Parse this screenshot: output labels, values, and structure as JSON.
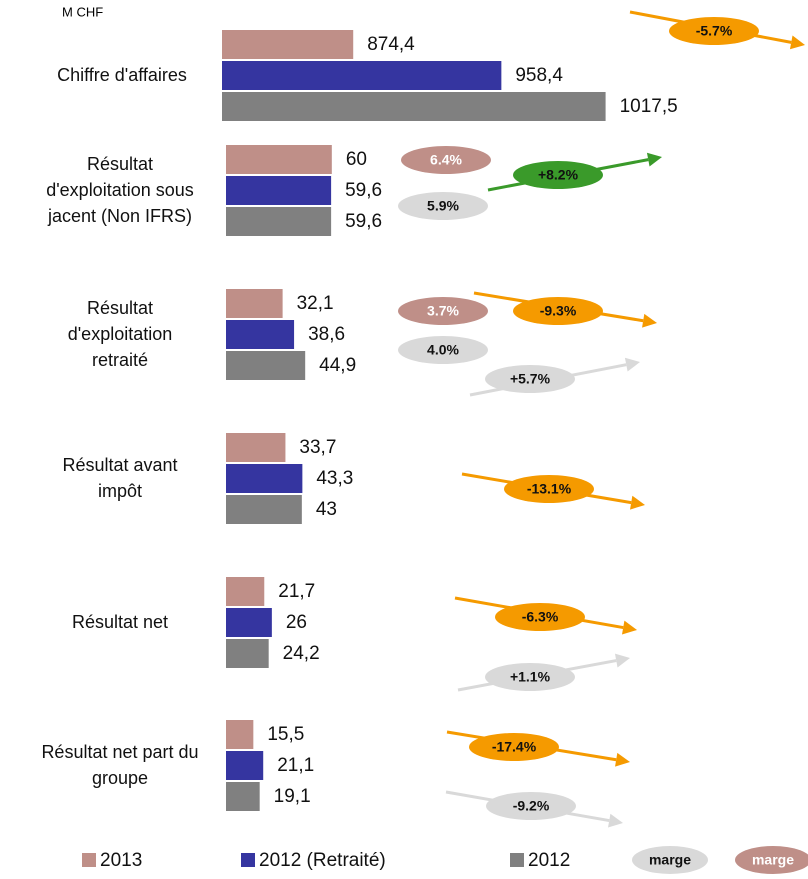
{
  "unit": "M CHF",
  "chart_data": [
    {
      "type": "hbar",
      "categories": [
        "Chiffre d'affaires"
      ],
      "xlim": [
        800,
        1020
      ],
      "series": [
        {
          "name": "2013",
          "color": "#bf8f88",
          "values": [
            874.4
          ],
          "value_labels": [
            "874,4"
          ]
        },
        {
          "name": "2012 (Retraité)",
          "color": "#3535a0",
          "values": [
            958.4
          ],
          "value_labels": [
            "958,4"
          ]
        },
        {
          "name": "2012",
          "color": "#808080",
          "values": [
            1017.5
          ],
          "value_labels": [
            "1017,5"
          ]
        }
      ]
    },
    {
      "type": "hbar",
      "categories": [
        "Résultat\nd'exploitation sous\njacent (Non IFRS)",
        "Résultat\nd'exploitation\nretraité",
        "Résultat avant\nimpôt",
        "Résultat net",
        "Résultat net part du\ngroupe"
      ],
      "xlim": [
        0,
        220
      ],
      "series": [
        {
          "name": "2013",
          "color": "#bf8f88",
          "values": [
            60,
            32.1,
            33.7,
            21.7,
            15.5
          ],
          "value_labels": [
            "60",
            "32,1",
            "33,7",
            "21,7",
            "15,5"
          ]
        },
        {
          "name": "2012 (Retraité)",
          "color": "#3535a0",
          "values": [
            59.6,
            38.6,
            43.3,
            26,
            21.1
          ],
          "value_labels": [
            "59,6",
            "38,6",
            "43,3",
            "26",
            "21,1"
          ]
        },
        {
          "name": "2012",
          "color": "#808080",
          "values": [
            59.6,
            44.9,
            43,
            24.2,
            19.1
          ],
          "value_labels": [
            "59,6",
            "44,9",
            "43",
            "24,2",
            "19,1"
          ]
        }
      ]
    }
  ],
  "annotations": [
    {
      "text": "-5.7%",
      "color": "#f59a00"
    },
    {
      "text": "6.4%",
      "color": "#bf8f88"
    },
    {
      "text": "5.9%",
      "color": "#d9d9d9"
    },
    {
      "text": "+8.2%",
      "color": "#3a9a2a"
    },
    {
      "text": "3.7%",
      "color": "#bf8f88"
    },
    {
      "text": "4.0%",
      "color": "#d9d9d9"
    },
    {
      "text": "-9.3%",
      "color": "#f59a00"
    },
    {
      "text": "+5.7%",
      "color": "#d9d9d9"
    },
    {
      "text": "-13.1%",
      "color": "#f59a00"
    },
    {
      "text": "-6.3%",
      "color": "#f59a00"
    },
    {
      "text": "+1.1%",
      "color": "#d9d9d9"
    },
    {
      "text": "-17.4%",
      "color": "#f59a00"
    },
    {
      "text": "-9.2%",
      "color": "#d9d9d9"
    }
  ],
  "legend_extra": [
    {
      "name": "marge",
      "color": "#d9d9d9"
    },
    {
      "name": "marge",
      "color": "#bf8f88"
    }
  ]
}
